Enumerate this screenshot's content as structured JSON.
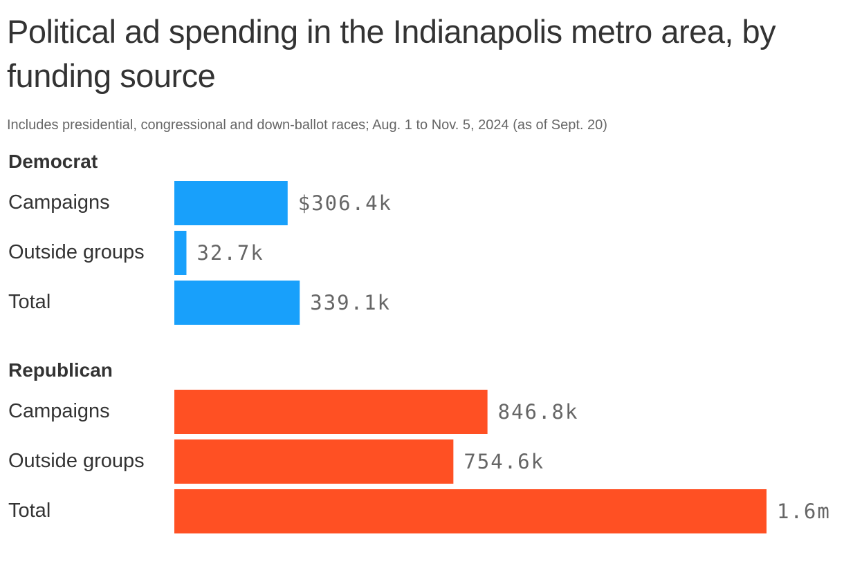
{
  "title": "Political ad spending in the Indianapolis metro area, by funding source",
  "subtitle": "Includes presidential, congressional and down-ballot races; Aug. 1 to Nov. 5, 2024 (as of Sept. 20)",
  "chart_data": {
    "type": "bar",
    "orientation": "horizontal",
    "grid": false,
    "xlim": [
      0,
      1601400
    ],
    "groups": [
      {
        "name": "Democrat",
        "color": "#18a0fb",
        "categories": [
          "Campaigns",
          "Outside groups",
          "Total"
        ],
        "values": [
          306400,
          32700,
          339100
        ],
        "labels": [
          "$306.4k",
          "32.7k",
          "339.1k"
        ]
      },
      {
        "name": "Republican",
        "color": "#ff5023",
        "categories": [
          "Campaigns",
          "Outside groups",
          "Total"
        ],
        "values": [
          846800,
          754600,
          1601400
        ],
        "labels": [
          "846.8k",
          "754.6k",
          "1.6m"
        ]
      }
    ]
  }
}
